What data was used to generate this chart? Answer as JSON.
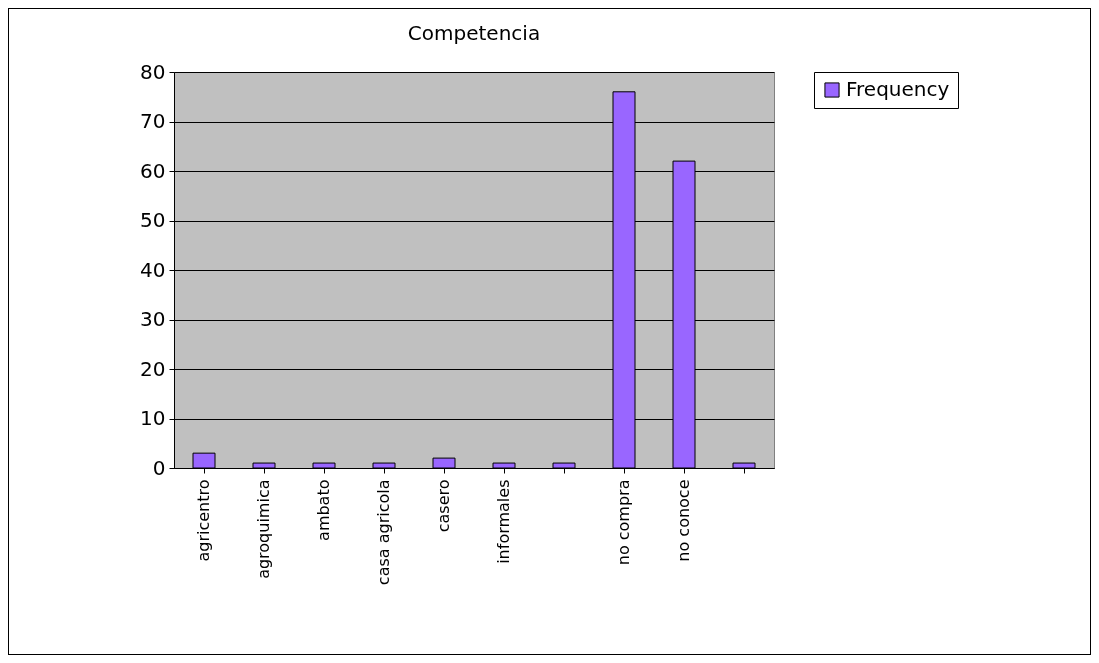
{
  "chart_data": {
    "type": "bar",
    "title": "Competencia",
    "categories": [
      "agricentro",
      "agroquimica",
      "ambato",
      "casa agricola",
      "casero",
      "informales",
      null,
      "no compra",
      "no conoce",
      null
    ],
    "series": [
      {
        "name": "Frequency",
        "color": "#9966ff",
        "values": [
          3,
          1,
          1,
          1,
          2,
          1,
          1,
          76,
          62,
          1
        ]
      }
    ],
    "ylim": [
      0,
      80
    ],
    "yticks": [
      0,
      10,
      20,
      30,
      40,
      50,
      60,
      70,
      80
    ],
    "grid": "y",
    "legend": "right"
  }
}
